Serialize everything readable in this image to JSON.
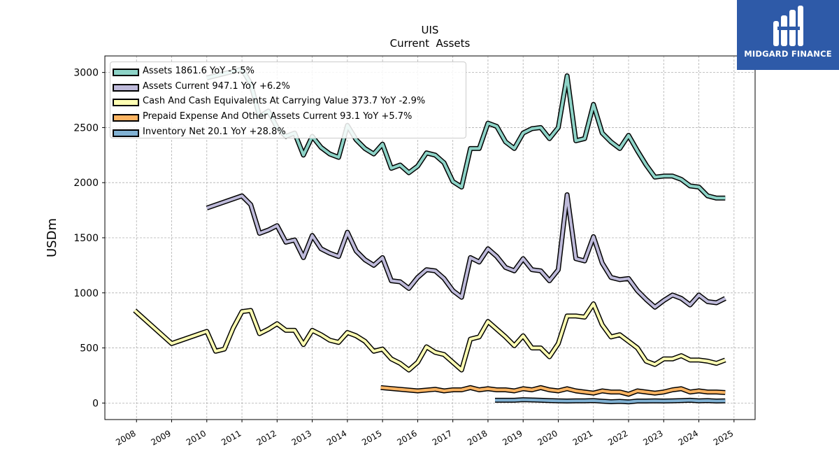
{
  "title": "UIS",
  "subtitle": "Current  Assets",
  "logo": {
    "name": "MIDGARD FINANCE"
  },
  "chart_data": {
    "type": "line",
    "title": "UIS",
    "subtitle": "Current  Assets",
    "xlabel": "",
    "ylabel": "USDm",
    "xlim": [
      2007.1,
      2025.6
    ],
    "ylim": [
      -150,
      3150
    ],
    "x_ticks": [
      "2008",
      "2009",
      "2010",
      "2011",
      "2012",
      "2013",
      "2014",
      "2015",
      "2016",
      "2017",
      "2018",
      "2019",
      "2020",
      "2021",
      "2022",
      "2023",
      "2024",
      "2025"
    ],
    "y_ticks": [
      "0",
      "500",
      "1000",
      "1500",
      "2000",
      "2500",
      "3000"
    ],
    "grid": true,
    "legend_position": "top-left",
    "series": [
      {
        "name": "Assets",
        "legend": "Assets  1861.6 YoY -5.5%",
        "color": "#8dd3c7",
        "x": [
          2010.0,
          2011.0,
          2011.25,
          2011.5,
          2011.75,
          2012.0,
          2012.25,
          2012.5,
          2012.75,
          2013.0,
          2013.25,
          2013.5,
          2013.75,
          2014.0,
          2014.25,
          2014.5,
          2014.75,
          2015.0,
          2015.25,
          2015.5,
          2015.75,
          2016.0,
          2016.25,
          2016.5,
          2016.75,
          2017.0,
          2017.25,
          2017.5,
          2017.75,
          2018.0,
          2018.25,
          2018.5,
          2018.75,
          2019.0,
          2019.25,
          2019.5,
          2019.75,
          2020.0,
          2020.25,
          2020.5,
          2020.75,
          2021.0,
          2021.25,
          2021.5,
          2021.75,
          2022.0,
          2022.25,
          2022.5,
          2022.75,
          2023.0,
          2023.25,
          2023.5,
          2023.75,
          2024.0,
          2024.25,
          2024.5,
          2024.75
        ],
        "values": [
          2950,
          3030,
          2900,
          2600,
          2650,
          2500,
          2420,
          2450,
          2250,
          2420,
          2320,
          2260,
          2230,
          2520,
          2390,
          2310,
          2260,
          2350,
          2130,
          2160,
          2090,
          2150,
          2270,
          2250,
          2180,
          2010,
          1960,
          2310,
          2310,
          2540,
          2510,
          2370,
          2310,
          2450,
          2490,
          2500,
          2400,
          2500,
          2970,
          2380,
          2400,
          2710,
          2450,
          2370,
          2310,
          2430,
          2290,
          2160,
          2050,
          2060,
          2060,
          2030,
          1970,
          1960,
          1880,
          1860,
          1860
        ]
      },
      {
        "name": "Assets Current",
        "legend": "Assets Current  947.1 YoY +6.2%",
        "color": "#bebada",
        "x": [
          2010.0,
          2011.0,
          2011.25,
          2011.5,
          2011.75,
          2012.0,
          2012.25,
          2012.5,
          2012.75,
          2013.0,
          2013.25,
          2013.5,
          2013.75,
          2014.0,
          2014.25,
          2014.5,
          2014.75,
          2015.0,
          2015.25,
          2015.5,
          2015.75,
          2016.0,
          2016.25,
          2016.5,
          2016.75,
          2017.0,
          2017.25,
          2017.5,
          2017.75,
          2018.0,
          2018.25,
          2018.5,
          2018.75,
          2019.0,
          2019.25,
          2019.5,
          2019.75,
          2020.0,
          2020.25,
          2020.5,
          2020.75,
          2021.0,
          2021.25,
          2021.5,
          2021.75,
          2022.0,
          2022.25,
          2022.5,
          2022.75,
          2023.0,
          2023.25,
          2023.5,
          2023.75,
          2024.0,
          2024.25,
          2024.5,
          2024.75
        ],
        "values": [
          1770,
          1880,
          1800,
          1540,
          1570,
          1610,
          1460,
          1480,
          1320,
          1520,
          1400,
          1360,
          1330,
          1550,
          1380,
          1300,
          1250,
          1320,
          1110,
          1100,
          1040,
          1140,
          1210,
          1200,
          1130,
          1020,
          960,
          1320,
          1280,
          1400,
          1330,
          1230,
          1200,
          1310,
          1210,
          1200,
          1110,
          1210,
          1890,
          1310,
          1290,
          1510,
          1270,
          1140,
          1120,
          1130,
          1020,
          940,
          870,
          930,
          980,
          950,
          890,
          980,
          920,
          910,
          950
        ]
      },
      {
        "name": "Cash And Cash Equivalents At Carrying Value",
        "legend": "Cash And Cash Equivalents At Carrying Value  373.7 YoY -2.9%",
        "color": "#ffffb3",
        "x": [
          2007.95,
          2009.0,
          2010.0,
          2010.25,
          2010.5,
          2010.75,
          2011.0,
          2011.25,
          2011.5,
          2011.75,
          2012.0,
          2012.25,
          2012.5,
          2012.75,
          2013.0,
          2013.25,
          2013.5,
          2013.75,
          2014.0,
          2014.25,
          2014.5,
          2014.75,
          2015.0,
          2015.25,
          2015.5,
          2015.75,
          2016.0,
          2016.25,
          2016.5,
          2016.75,
          2017.0,
          2017.25,
          2017.5,
          2017.75,
          2018.0,
          2018.25,
          2018.5,
          2018.75,
          2019.0,
          2019.25,
          2019.5,
          2019.75,
          2020.0,
          2020.25,
          2020.5,
          2020.75,
          2021.0,
          2021.25,
          2021.5,
          2021.75,
          2022.0,
          2022.25,
          2022.5,
          2022.75,
          2023.0,
          2023.25,
          2023.5,
          2023.75,
          2024.0,
          2024.25,
          2024.5,
          2024.75
        ],
        "values": [
          840,
          540,
          650,
          470,
          490,
          680,
          830,
          840,
          630,
          670,
          720,
          660,
          660,
          530,
          660,
          620,
          570,
          550,
          640,
          610,
          560,
          470,
          490,
          400,
          360,
          300,
          370,
          510,
          460,
          440,
          370,
          300,
          580,
          600,
          740,
          670,
          600,
          520,
          610,
          500,
          500,
          420,
          540,
          790,
          790,
          780,
          900,
          710,
          600,
          620,
          560,
          500,
          380,
          350,
          400,
          400,
          430,
          390,
          390,
          380,
          360,
          390
        ]
      },
      {
        "name": "Prepaid Expense And Other Assets Current",
        "legend": "Prepaid Expense And Other Assets Current  93.1 YoY +5.7%",
        "color": "#fdb462",
        "x": [
          2014.95,
          2016.0,
          2016.5,
          2016.75,
          2017.0,
          2017.25,
          2017.5,
          2017.75,
          2018.0,
          2018.25,
          2018.5,
          2018.75,
          2019.0,
          2019.25,
          2019.5,
          2019.75,
          2020.0,
          2020.25,
          2020.5,
          2020.75,
          2021.0,
          2021.25,
          2021.5,
          2021.75,
          2022.0,
          2022.25,
          2022.5,
          2022.75,
          2023.0,
          2023.25,
          2023.5,
          2023.75,
          2024.0,
          2024.25,
          2024.5,
          2024.75
        ],
        "values": [
          140,
          110,
          125,
          110,
          120,
          120,
          140,
          120,
          130,
          120,
          120,
          110,
          130,
          120,
          140,
          120,
          110,
          130,
          110,
          100,
          90,
          110,
          100,
          100,
          80,
          110,
          100,
          90,
          100,
          120,
          130,
          100,
          110,
          100,
          100,
          95
        ]
      },
      {
        "name": "Inventory Net",
        "legend": "Inventory Net  20.1 YoY +28.8%",
        "color": "#80b1d3",
        "x": [
          2018.2,
          2018.5,
          2018.75,
          2019.0,
          2019.25,
          2019.5,
          2019.75,
          2020.0,
          2020.25,
          2020.5,
          2020.75,
          2021.0,
          2021.25,
          2021.5,
          2021.75,
          2022.0,
          2022.25,
          2022.5,
          2022.75,
          2023.0,
          2023.25,
          2023.5,
          2023.75,
          2024.0,
          2024.25,
          2024.5,
          2024.75
        ],
        "values": [
          25,
          25,
          25,
          30,
          28,
          25,
          22,
          20,
          18,
          20,
          20,
          22,
          16,
          12,
          15,
          10,
          18,
          18,
          20,
          18,
          20,
          22,
          25,
          20,
          22,
          18,
          20
        ]
      }
    ]
  }
}
